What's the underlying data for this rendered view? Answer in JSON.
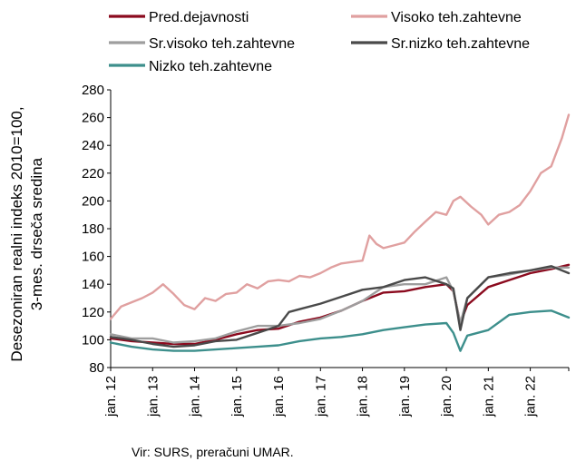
{
  "chart_data": {
    "type": "line",
    "title": "",
    "ylabel_lines": [
      "Desezoniran realni indeks 2010=100,",
      "3-mes. drseča sredina"
    ],
    "ylim": [
      80,
      280
    ],
    "yticks": [
      80,
      100,
      120,
      140,
      160,
      180,
      200,
      220,
      240,
      260,
      280
    ],
    "x_tick_labels": [
      "jan. 12",
      "jan. 13",
      "jan. 14",
      "jan. 15",
      "jan. 16",
      "jan. 17",
      "jan. 18",
      "jan. 19",
      "jan. 20",
      "jan. 21",
      "jan. 22"
    ],
    "x_start": "2012-01",
    "x_end": "2022-12",
    "grid": false,
    "legend_position": "top",
    "source": "Vir: SURS, preračuni UMAR.",
    "series": [
      {
        "name": "Pred.dejavnosti",
        "color": "#8b0a1e",
        "x": [
          "2012-01",
          "2012-07",
          "2013-01",
          "2013-07",
          "2014-01",
          "2014-07",
          "2015-01",
          "2015-07",
          "2016-01",
          "2016-07",
          "2017-01",
          "2017-07",
          "2018-01",
          "2018-07",
          "2019-01",
          "2019-07",
          "2020-01",
          "2020-03",
          "2020-05",
          "2020-07",
          "2021-01",
          "2021-07",
          "2022-01",
          "2022-07",
          "2022-12"
        ],
        "values": [
          101,
          99,
          98,
          97,
          97,
          100,
          104,
          107,
          108,
          113,
          116,
          121,
          128,
          134,
          135,
          138,
          140,
          135,
          112,
          125,
          138,
          143,
          148,
          151,
          154
        ]
      },
      {
        "name": "Visoko teh.zahtevne",
        "color": "#e0a0a0",
        "x": [
          "2012-01",
          "2012-04",
          "2012-07",
          "2012-10",
          "2013-01",
          "2013-04",
          "2013-07",
          "2013-10",
          "2014-01",
          "2014-04",
          "2014-07",
          "2014-10",
          "2015-01",
          "2015-04",
          "2015-07",
          "2015-10",
          "2016-01",
          "2016-04",
          "2016-07",
          "2016-10",
          "2017-01",
          "2017-04",
          "2017-07",
          "2017-10",
          "2018-01",
          "2018-03",
          "2018-05",
          "2018-07",
          "2018-10",
          "2019-01",
          "2019-04",
          "2019-07",
          "2019-10",
          "2020-01",
          "2020-03",
          "2020-05",
          "2020-08",
          "2020-11",
          "2021-01",
          "2021-04",
          "2021-07",
          "2021-10",
          "2022-01",
          "2022-04",
          "2022-07",
          "2022-10",
          "2022-12"
        ],
        "values": [
          115,
          124,
          127,
          130,
          134,
          140,
          133,
          125,
          122,
          130,
          128,
          133,
          134,
          140,
          137,
          142,
          143,
          142,
          146,
          145,
          148,
          152,
          155,
          156,
          157,
          175,
          169,
          166,
          168,
          170,
          178,
          185,
          192,
          190,
          200,
          203,
          196,
          190,
          183,
          190,
          192,
          197,
          207,
          220,
          225,
          245,
          262
        ]
      },
      {
        "name": "Sr.visoko teh.zahtevne",
        "color": "#9e9e9e",
        "x": [
          "2012-01",
          "2012-07",
          "2013-01",
          "2013-07",
          "2014-01",
          "2014-07",
          "2015-01",
          "2015-07",
          "2016-01",
          "2016-07",
          "2017-01",
          "2017-07",
          "2018-01",
          "2018-07",
          "2019-01",
          "2019-07",
          "2020-01",
          "2020-03",
          "2020-05",
          "2020-07",
          "2021-01",
          "2021-07",
          "2022-01",
          "2022-07",
          "2022-12"
        ],
        "values": [
          104,
          101,
          101,
          98,
          99,
          101,
          106,
          110,
          110,
          112,
          115,
          121,
          128,
          138,
          140,
          140,
          145,
          135,
          112,
          130,
          145,
          147,
          150,
          152,
          152
        ]
      },
      {
        "name": "Sr.nizko teh.zahtevne",
        "color": "#4a4a4a",
        "x": [
          "2012-01",
          "2012-07",
          "2013-01",
          "2013-07",
          "2014-01",
          "2014-07",
          "2015-01",
          "2015-07",
          "2016-01",
          "2016-04",
          "2016-07",
          "2017-01",
          "2017-07",
          "2018-01",
          "2018-07",
          "2019-01",
          "2019-07",
          "2020-01",
          "2020-03",
          "2020-05",
          "2020-07",
          "2021-01",
          "2021-07",
          "2022-01",
          "2022-07",
          "2022-12"
        ],
        "values": [
          102,
          100,
          97,
          95,
          96,
          99,
          100,
          105,
          110,
          120,
          122,
          126,
          131,
          136,
          138,
          143,
          145,
          140,
          137,
          107,
          130,
          145,
          148,
          150,
          153,
          148
        ]
      },
      {
        "name": "Nizko teh.zahtevne",
        "color": "#3d8f8c",
        "x": [
          "2012-01",
          "2012-07",
          "2013-01",
          "2013-07",
          "2014-01",
          "2014-07",
          "2015-01",
          "2015-07",
          "2016-01",
          "2016-07",
          "2017-01",
          "2017-07",
          "2018-01",
          "2018-07",
          "2019-01",
          "2019-07",
          "2020-01",
          "2020-03",
          "2020-05",
          "2020-07",
          "2021-01",
          "2021-07",
          "2022-01",
          "2022-07",
          "2022-12"
        ],
        "values": [
          98,
          95,
          93,
          92,
          92,
          93,
          94,
          95,
          96,
          99,
          101,
          102,
          104,
          107,
          109,
          111,
          112,
          105,
          92,
          103,
          107,
          118,
          120,
          121,
          116
        ]
      }
    ]
  }
}
